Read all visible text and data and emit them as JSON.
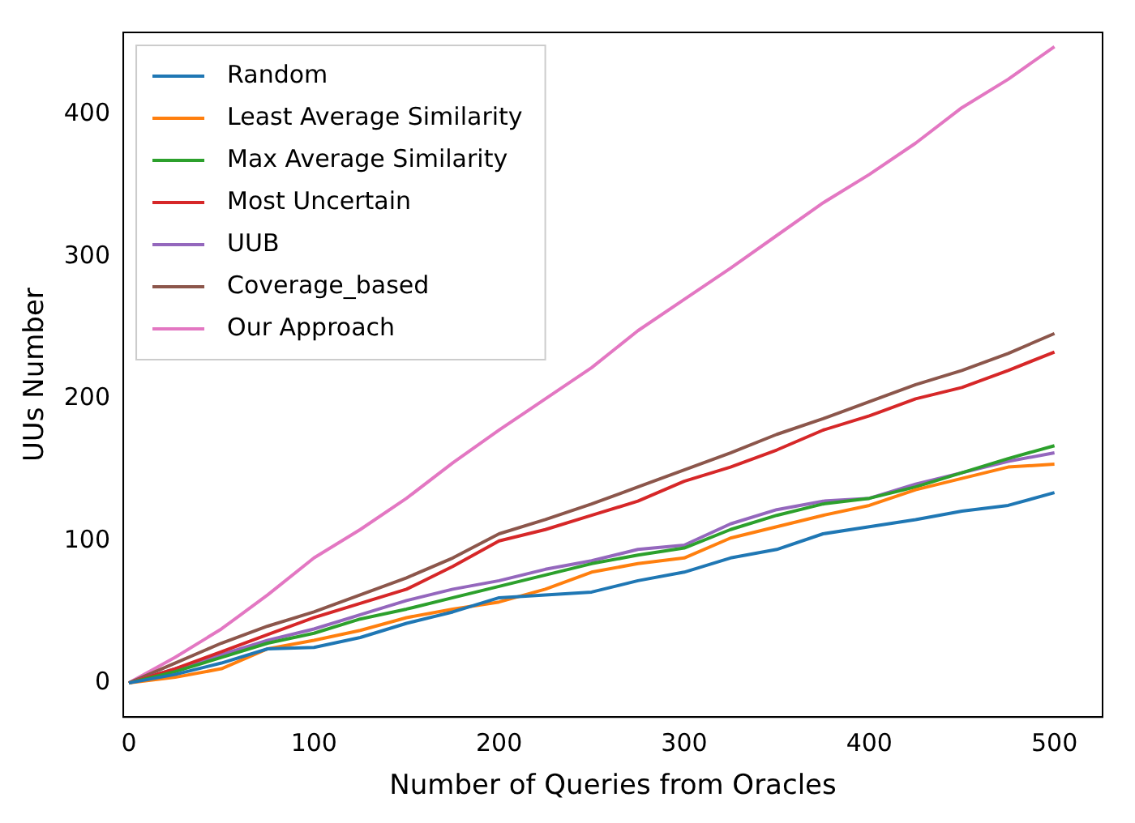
{
  "chart_data": {
    "type": "line",
    "xlabel": "Number of Queries from Oracles",
    "ylabel": "UUs Number",
    "x": [
      0,
      25,
      50,
      75,
      100,
      125,
      150,
      175,
      200,
      225,
      250,
      275,
      300,
      325,
      350,
      375,
      400,
      425,
      450,
      475,
      500
    ],
    "series": [
      {
        "name": "Random",
        "color": "#1f77b4",
        "values": [
          0,
          6,
          14,
          24,
          25,
          32,
          42,
          50,
          60,
          62,
          64,
          72,
          78,
          88,
          94,
          105,
          110,
          115,
          121,
          125,
          134
        ]
      },
      {
        "name": "Least Average Similarity",
        "color": "#ff7f0e",
        "values": [
          0,
          4,
          10,
          24,
          30,
          37,
          46,
          52,
          57,
          66,
          78,
          84,
          88,
          102,
          110,
          118,
          125,
          136,
          144,
          152,
          154
        ]
      },
      {
        "name": "Max Average Similarity",
        "color": "#2ca02c",
        "values": [
          0,
          8,
          18,
          28,
          35,
          45,
          52,
          60,
          68,
          76,
          84,
          90,
          95,
          108,
          118,
          126,
          130,
          138,
          148,
          158,
          167
        ]
      },
      {
        "name": "Most Uncertain",
        "color": "#d62728",
        "values": [
          0,
          10,
          22,
          34,
          46,
          56,
          66,
          82,
          100,
          108,
          118,
          128,
          142,
          152,
          164,
          178,
          188,
          200,
          208,
          220,
          233
        ]
      },
      {
        "name": "UUB",
        "color": "#9467bd",
        "values": [
          0,
          10,
          20,
          30,
          38,
          48,
          58,
          66,
          72,
          80,
          86,
          94,
          97,
          112,
          122,
          128,
          130,
          140,
          148,
          156,
          162
        ]
      },
      {
        "name": "Coverage_based",
        "color": "#8c564b",
        "values": [
          0,
          14,
          28,
          40,
          50,
          62,
          74,
          88,
          105,
          115,
          126,
          138,
          150,
          162,
          175,
          186,
          198,
          210,
          220,
          232,
          246
        ]
      },
      {
        "name": "Our Approach",
        "color": "#e377c2",
        "values": [
          0,
          18,
          38,
          62,
          88,
          108,
          130,
          155,
          178,
          200,
          222,
          248,
          270,
          292,
          315,
          338,
          358,
          380,
          405,
          425,
          448
        ]
      }
    ],
    "xlim": [
      -3,
      526
    ],
    "ylim": [
      -24,
      458
    ],
    "xticks": [
      0,
      100,
      200,
      300,
      400,
      500
    ],
    "yticks": [
      0,
      100,
      200,
      300,
      400
    ],
    "legend": "top left",
    "grid": false,
    "marker": "none",
    "line_style": "solid"
  }
}
